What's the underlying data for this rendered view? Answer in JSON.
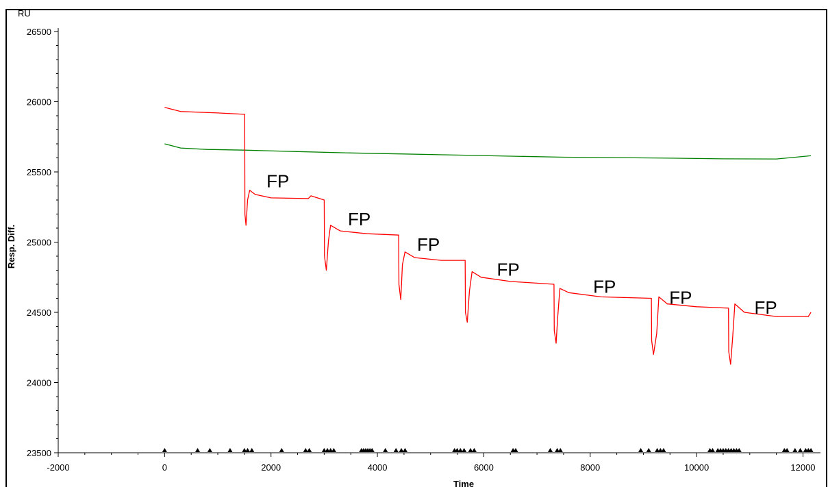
{
  "chart_data": {
    "type": "line",
    "title": "",
    "xlabel": "Time",
    "ylabel": "Resp. Diff.",
    "yunit": "RU",
    "xlim": [
      -2000,
      12200
    ],
    "ylim": [
      23500,
      26500
    ],
    "x_ticks": [
      "-2000",
      "0",
      "2000",
      "4000",
      "6000",
      "8000",
      "10000",
      "12000"
    ],
    "y_ticks": [
      "23500",
      "24000",
      "24500",
      "25000",
      "25500",
      "26000",
      "26500"
    ],
    "grid": false,
    "legend": "none",
    "colors": {
      "red": "#ff0000",
      "green": "#008000",
      "axis": "#000000",
      "markers": "#000000"
    },
    "series": [
      {
        "color": "#008000",
        "x": [
          0,
          300,
          800,
          1500,
          2500,
          3500,
          4500,
          5500,
          6500,
          7500,
          8500,
          9500,
          10500,
          11500,
          12150
        ],
        "y": [
          25700,
          25670,
          25660,
          25655,
          25645,
          25635,
          25628,
          25620,
          25612,
          25605,
          25602,
          25598,
          25593,
          25592,
          25615
        ]
      },
      {
        "color": "#ff0000",
        "x": [
          0,
          300,
          1000,
          1505,
          1510,
          1530,
          1560,
          1600,
          1700,
          2000,
          2700,
          2750,
          3000,
          3005,
          3040,
          3080,
          3120,
          3300,
          3800,
          4400,
          4405,
          4440,
          4470,
          4520,
          4700,
          5200,
          5650,
          5655,
          5690,
          5730,
          5780,
          5950,
          6500,
          7320,
          7325,
          7360,
          7390,
          7430,
          7600,
          8200,
          9150,
          9155,
          9190,
          9250,
          9290,
          9450,
          10000,
          10600,
          10605,
          10640,
          10680,
          10720,
          10900,
          11500,
          12100,
          12150
        ],
        "y": [
          25960,
          25930,
          25920,
          25910,
          25200,
          25120,
          25300,
          25370,
          25340,
          25315,
          25310,
          25330,
          25300,
          24900,
          24800,
          25010,
          25120,
          25080,
          25060,
          25050,
          24700,
          24590,
          24840,
          24930,
          24890,
          24870,
          24870,
          24500,
          24430,
          24650,
          24790,
          24750,
          24720,
          24700,
          24370,
          24280,
          24470,
          24670,
          24640,
          24610,
          24600,
          24300,
          24200,
          24350,
          24610,
          24560,
          24540,
          24530,
          24220,
          24130,
          24330,
          24560,
          24500,
          24470,
          24470,
          24500
        ]
      }
    ],
    "annotations": [
      {
        "text": "FP",
        "x": 2130,
        "y": 25390
      },
      {
        "text": "FP",
        "x": 3660,
        "y": 25120
      },
      {
        "text": "FP",
        "x": 4960,
        "y": 24940
      },
      {
        "text": "FP",
        "x": 6460,
        "y": 24760
      },
      {
        "text": "FP",
        "x": 8270,
        "y": 24640
      },
      {
        "text": "FP",
        "x": 9700,
        "y": 24560
      },
      {
        "text": "FP",
        "x": 11300,
        "y": 24490
      }
    ],
    "event_markers_x": [
      0,
      620,
      850,
      1230,
      1500,
      1560,
      1640,
      2200,
      2650,
      2720,
      3000,
      3060,
      3120,
      3180,
      3700,
      3740,
      3780,
      3820,
      3860,
      3900,
      4150,
      4350,
      4450,
      4520,
      5450,
      5500,
      5560,
      5630,
      5750,
      5820,
      6550,
      6600,
      7250,
      7380,
      7440,
      8950,
      9100,
      9260,
      9320,
      9380,
      10250,
      10300,
      10400,
      10450,
      10500,
      10550,
      10600,
      10650,
      10700,
      10750,
      10800,
      11650,
      11700,
      11850,
      11950,
      12050,
      12100,
      12150
    ]
  }
}
